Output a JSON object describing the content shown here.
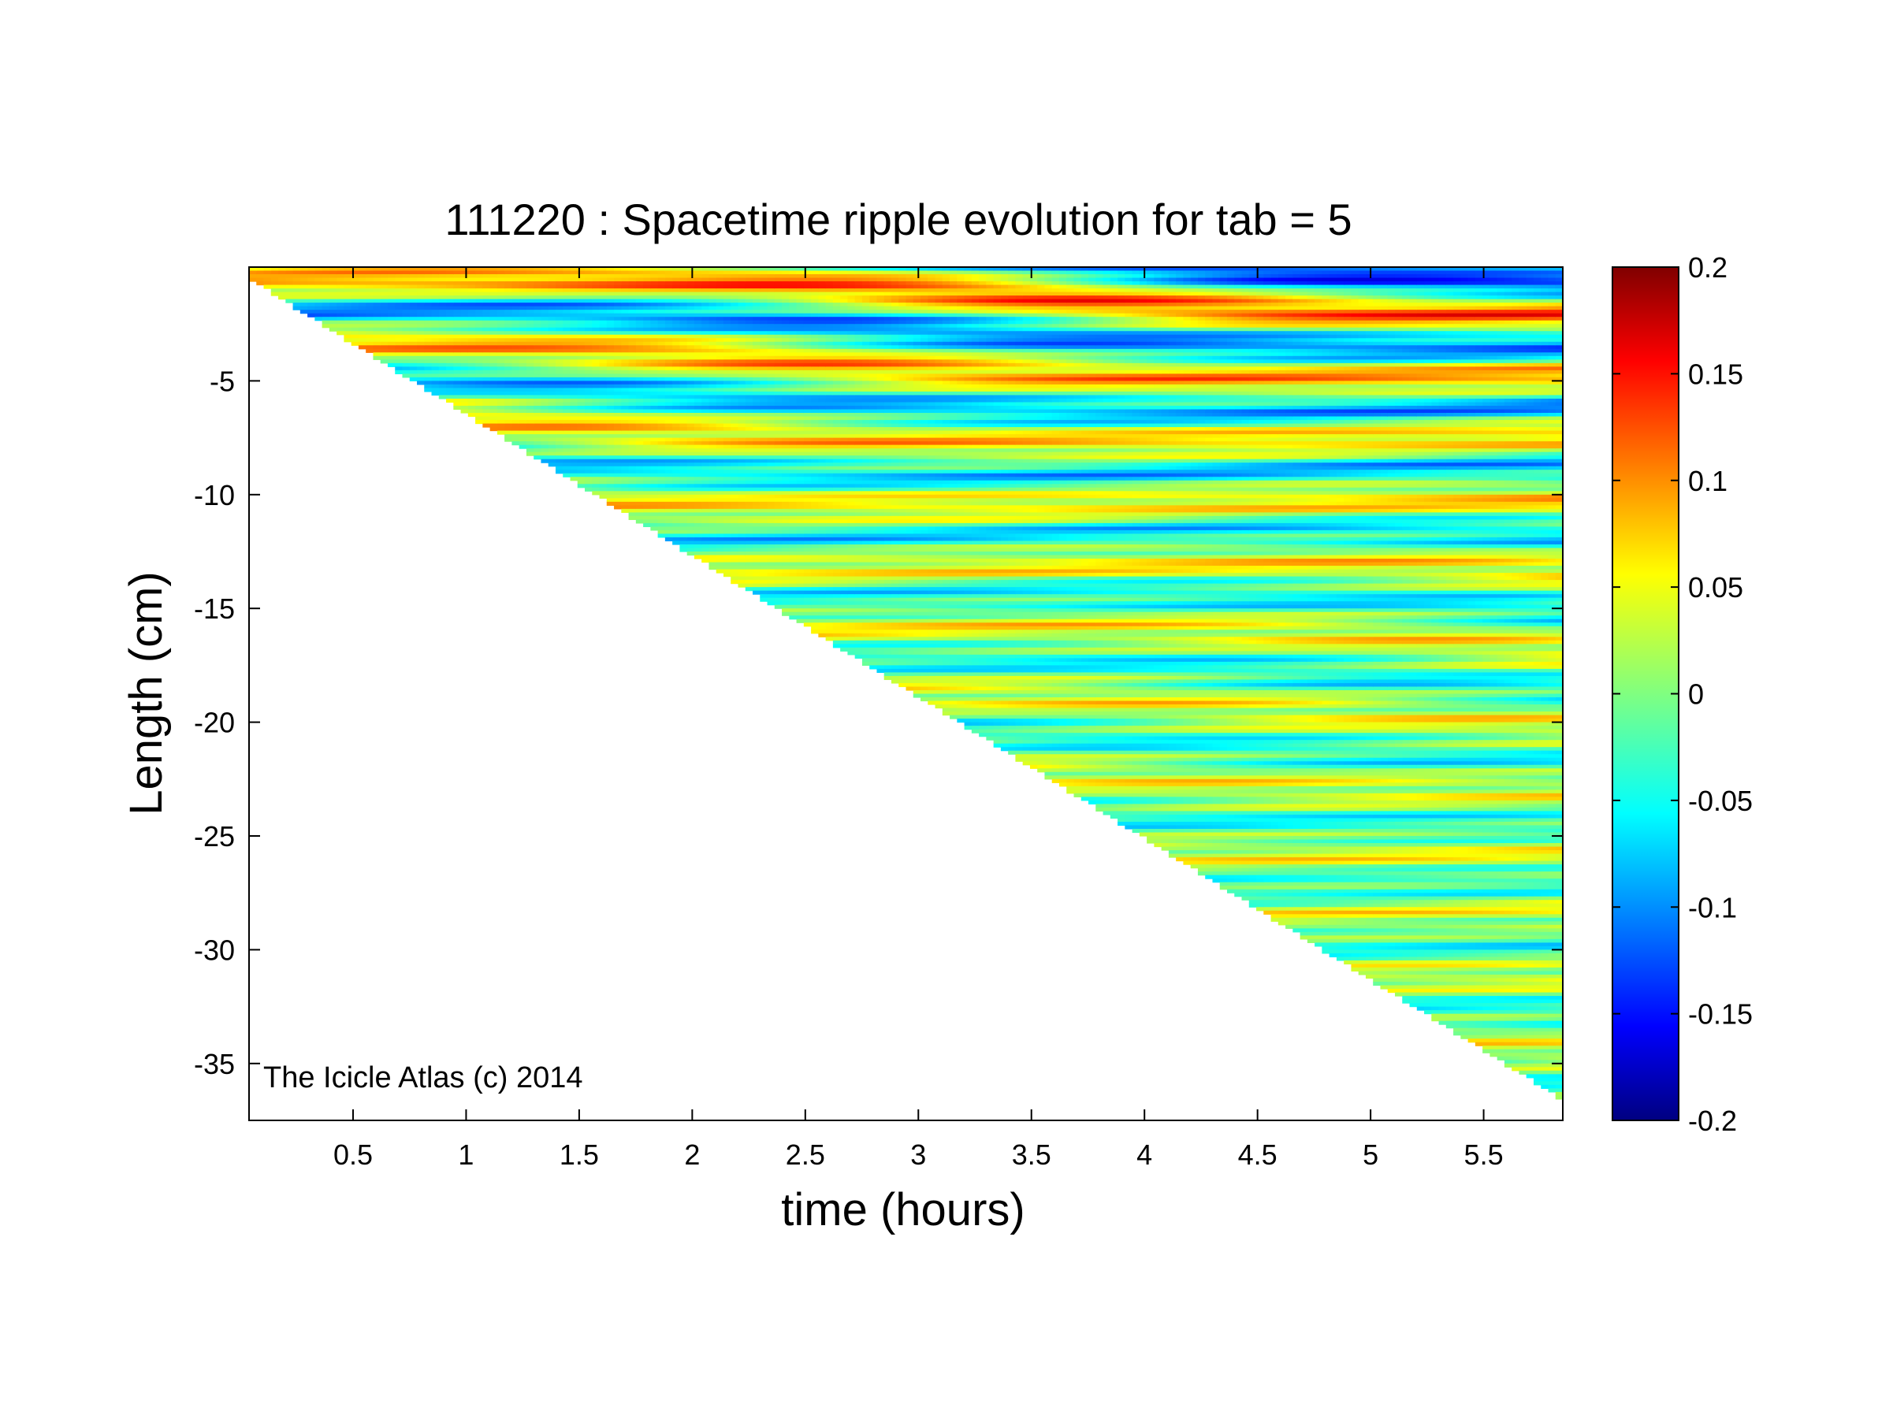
{
  "chart_data": {
    "type": "heatmap",
    "title": "111220 : Spacetime ripple evolution for tab = 5",
    "xlabel": "time (hours)",
    "ylabel": "Length (cm)",
    "xlim": [
      0.04,
      5.85
    ],
    "ylim": [
      -37.5,
      0
    ],
    "x_ticks": [
      0.5,
      1,
      1.5,
      2,
      2.5,
      3,
      3.5,
      4,
      4.5,
      5,
      5.5
    ],
    "x_tick_labels": [
      "0.5",
      "1",
      "1.5",
      "2",
      "2.5",
      "3",
      "3.5",
      "4",
      "4.5",
      "5",
      "5.5"
    ],
    "y_ticks": [
      -5,
      -10,
      -15,
      -20,
      -25,
      -30,
      -35
    ],
    "y_tick_labels": [
      "-5",
      "-10",
      "-15",
      "-20",
      "-25",
      "-30",
      "-35"
    ],
    "colorbar": {
      "colormap": "jet",
      "clim": [
        -0.2,
        0.2
      ],
      "ticks": [
        0.2,
        0.15,
        0.1,
        0.05,
        0,
        -0.05,
        -0.1,
        -0.15,
        -0.2
      ],
      "tick_labels": [
        "0.2",
        "0.15",
        "0.1",
        "0.05",
        "0",
        "-0.05",
        "-0.1",
        "-0.15",
        "-0.2"
      ]
    },
    "data_boundary": {
      "description_free_edge": true,
      "points": [
        [
          0.04,
          -0.5
        ],
        [
          5.85,
          -36.6
        ]
      ]
    },
    "grid": false,
    "annotation": "The Icicle Atlas (c) 2014"
  }
}
